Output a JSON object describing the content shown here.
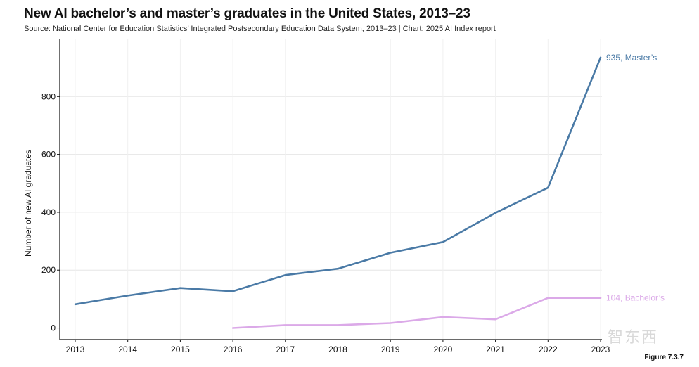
{
  "title": "New AI bachelor’s and master’s graduates in the United States, 2013–23",
  "subtitle": "Source: National Center for Education Statistics’ Integrated Postsecondary Education Data System, 2013–23 | Chart: 2025 AI Index report",
  "figure_label": "Figure 7.3.7",
  "watermark": "智东西",
  "chart_data": {
    "type": "line",
    "title": "New AI bachelor’s and master’s graduates in the United States, 2013–23",
    "xlabel": "",
    "ylabel": "Number of new AI graduates",
    "x": [
      2013,
      2014,
      2015,
      2016,
      2017,
      2018,
      2019,
      2020,
      2021,
      2022,
      2023
    ],
    "ylim": [
      -40,
      1000
    ],
    "yticks": [
      0,
      200,
      400,
      600,
      800
    ],
    "grid": true,
    "series": [
      {
        "name": "Master’s",
        "color": "#4a7aa6",
        "x": [
          2013,
          2014,
          2015,
          2016,
          2017,
          2018,
          2019,
          2020,
          2021,
          2022,
          2023
        ],
        "values": [
          82,
          112,
          138,
          127,
          183,
          205,
          260,
          297,
          398,
          485,
          935
        ],
        "end_label": "935, Master’s"
      },
      {
        "name": "Bachelor’s",
        "color": "#dba9e8",
        "x": [
          2016,
          2017,
          2018,
          2019,
          2020,
          2021,
          2022,
          2023
        ],
        "values": [
          0,
          10,
          10,
          17,
          38,
          30,
          104,
          104
        ],
        "end_label": "104, Bachelor’s"
      }
    ]
  }
}
